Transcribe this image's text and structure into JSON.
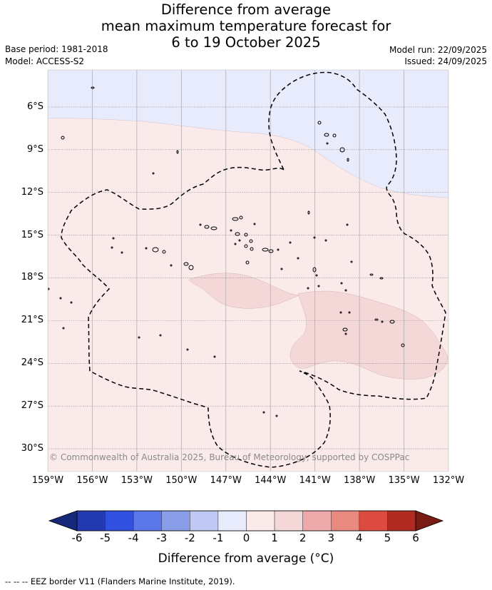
{
  "title": {
    "line1": "Difference from average",
    "line2": "mean maximum temperature forecast for",
    "line3": "6 to 19 October 2025"
  },
  "meta": {
    "base_period": "Base period: 1981-2018",
    "model": "Model: ACCESS-S2",
    "model_run": "Model run: 22/09/2025",
    "issued": "Issued: 24/09/2025"
  },
  "map": {
    "lon_ticks": [
      "159°W",
      "156°W",
      "153°W",
      "150°W",
      "147°W",
      "144°W",
      "141°W",
      "138°W",
      "135°W",
      "132°W"
    ],
    "lat_ticks": [
      "6°S",
      "9°S",
      "12°S",
      "15°S",
      "18°S",
      "21°S",
      "24°S",
      "27°S",
      "30°S"
    ],
    "extent": {
      "lon_min": -159,
      "lon_max": -132,
      "lat_top": -3.4,
      "lat_bottom": -31.6
    },
    "copyright": "© Commonwealth of Australia 2025, Bureau of Meteorology, supported by COSPPac",
    "colors": {
      "band_neg1_0": "#e8ebfb",
      "band_0_1": "#fbeaea",
      "band_1_2": "#f4d8d8",
      "grid": "#a8a8a8"
    }
  },
  "colorbar": {
    "title": "Difference from average (°C)",
    "ticks": [
      "-6",
      "-5",
      "-4",
      "-3",
      "-2",
      "-1",
      "0",
      "1",
      "2",
      "3",
      "4",
      "5",
      "6"
    ],
    "colors": [
      "#16287a",
      "#2339b0",
      "#3050e0",
      "#5a78e8",
      "#8a9de8",
      "#c0c8f4",
      "#e8ebfb",
      "#fbeaea",
      "#f4d8d8",
      "#eeaaaa",
      "#e88a80",
      "#dc4a40",
      "#b02a22",
      "#7a1a14"
    ]
  },
  "footnote": "-- -- -- EEZ border V11 (Flanders Marine Institute, 2019)."
}
